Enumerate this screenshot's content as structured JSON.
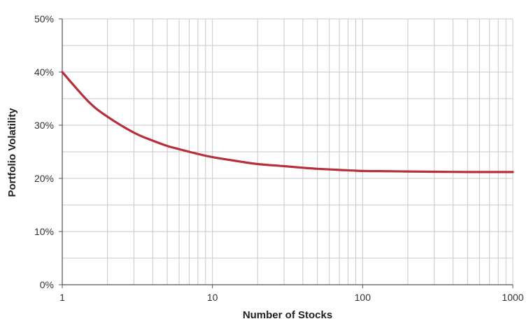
{
  "chart_data": {
    "type": "line",
    "title": "",
    "xlabel": "Number of Stocks",
    "ylabel": "Portfolio Volatility",
    "x_scale": "log",
    "xlim": [
      1,
      1000
    ],
    "ylim": [
      0,
      50
    ],
    "x_ticks": [
      {
        "value": 1,
        "label": "1"
      },
      {
        "value": 10,
        "label": "10"
      },
      {
        "value": 100,
        "label": "100"
      },
      {
        "value": 1000,
        "label": "1000"
      }
    ],
    "y_ticks": [
      {
        "value": 0,
        "label": "0%"
      },
      {
        "value": 10,
        "label": "10%"
      },
      {
        "value": 20,
        "label": "20%"
      },
      {
        "value": 30,
        "label": "30%"
      },
      {
        "value": 40,
        "label": "40%"
      },
      {
        "value": 50,
        "label": "50%"
      }
    ],
    "y_minor_gridlines": [
      5,
      15,
      25,
      35,
      45
    ],
    "x_minor_gridlines": "log decade subdivisions 2–9",
    "grid": true,
    "legend": "none",
    "series": [
      {
        "color": "#b5303a",
        "x": [
          1,
          1.5,
          2,
          3,
          4,
          5,
          6,
          8,
          10,
          15,
          20,
          30,
          40,
          50,
          70,
          100,
          150,
          200,
          300,
          500,
          700,
          1000
        ],
        "y": [
          40.0,
          34.4,
          31.6,
          28.6,
          27.1,
          26.1,
          25.5,
          24.6,
          24.0,
          23.2,
          22.7,
          22.3,
          22.0,
          21.8,
          21.6,
          21.4,
          21.35,
          21.3,
          21.25,
          21.2,
          21.2,
          21.2
        ]
      }
    ],
    "colors": {
      "line": "#b5303a",
      "grid": "#c8c8c8",
      "axis": "#555555"
    }
  }
}
